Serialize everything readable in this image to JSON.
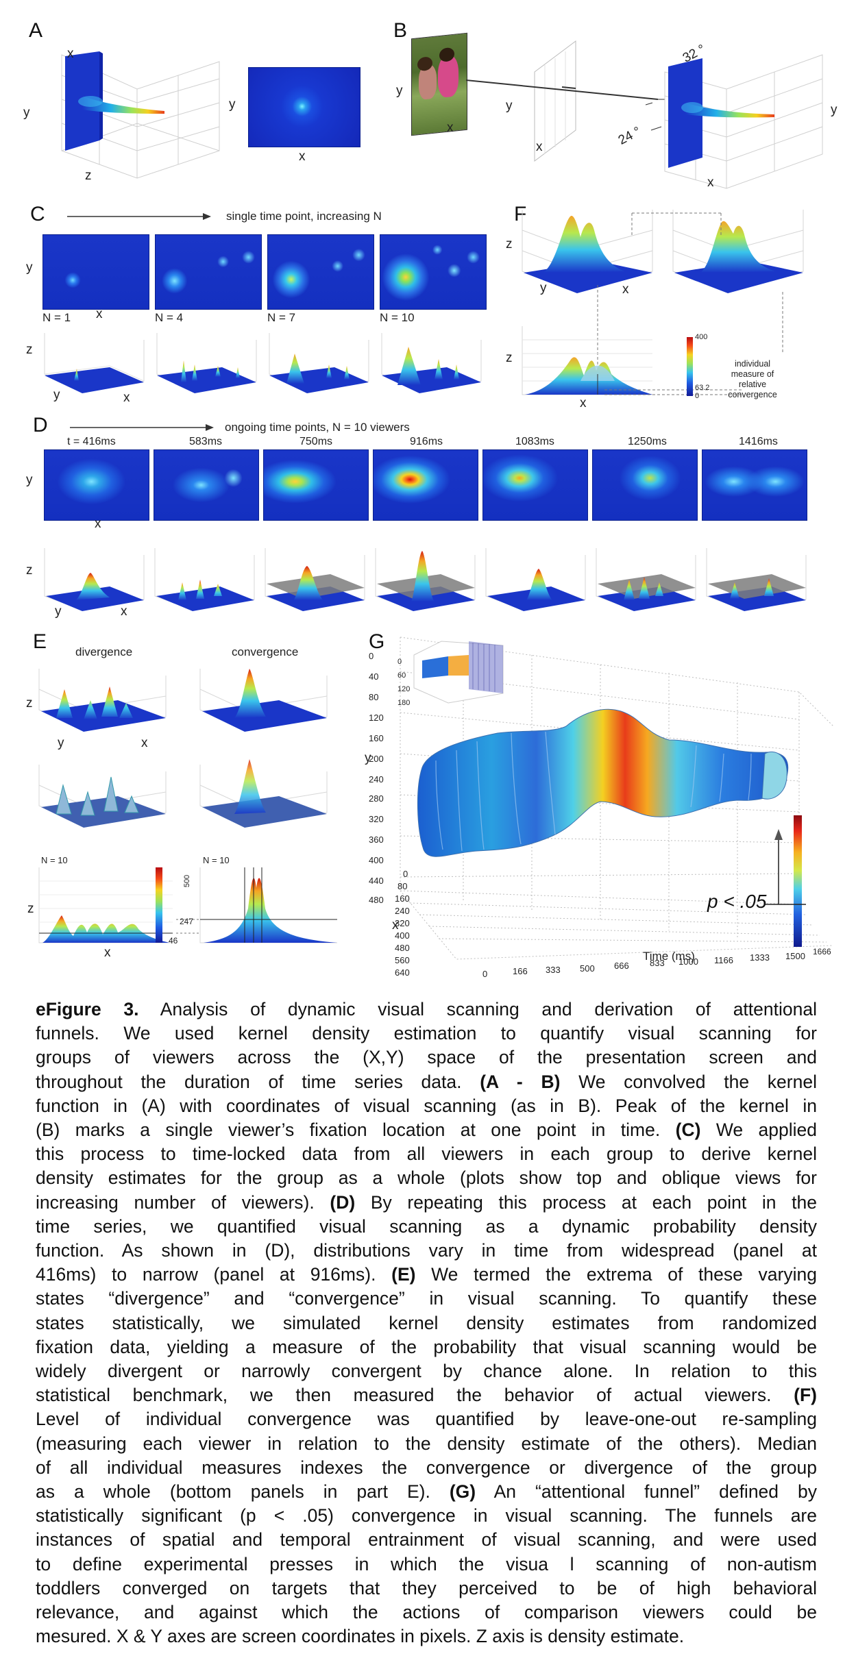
{
  "figure": {
    "panel_labels": [
      "A",
      "B",
      "C",
      "D",
      "E",
      "F",
      "G"
    ],
    "panel_a": {
      "axis_x_3d": "x",
      "axis_y_3d": "y",
      "axis_z_3d": "z",
      "axis_y_2d": "y",
      "axis_x_2d": "x"
    },
    "panel_b": {
      "axis_y_photo": "y",
      "axis_x_photo": "x",
      "axis_y_plane": "y",
      "axis_x_plane": "x",
      "angle_32": "32 °",
      "angle_24": "24 °",
      "axis_y_kernel": "y",
      "axis_x_kernel": "x"
    },
    "panel_c": {
      "title": "single time point,  increasing N",
      "axis_y": "y",
      "axis_x": "x",
      "axis_z": "z",
      "axis_y_low": "y",
      "axis_x_low": "x",
      "n_labels": [
        "N = 1",
        "N = 4",
        "N = 7",
        "N = 10"
      ]
    },
    "panel_d": {
      "title": "ongoing time points, N = 10 viewers",
      "time_labels": [
        "t = 416ms",
        "583ms",
        "750ms",
        "916ms",
        "1083ms",
        "1250ms",
        "1416ms"
      ],
      "axis_y": "y",
      "axis_x": "x",
      "axis_z": "z",
      "axis_y_low": "y",
      "axis_x_low": "x"
    },
    "panel_e": {
      "col_divergence": "divergence",
      "col_convergence": "convergence",
      "axis_z": "z",
      "axis_y": "y",
      "axis_x": "x",
      "n_left": "N = 10",
      "n_right": "N = 10",
      "axis_z_low": "z",
      "axis_x_low": "x",
      "colorbar_top": "500",
      "colorbar_mid": "247",
      "colorbar_low": "46"
    },
    "panel_f": {
      "axis_z": "z",
      "axis_y": "y",
      "axis_x": "x",
      "axis_z_low": "z",
      "axis_x_low": "x",
      "colorbar_top": "400",
      "colorbar_mid": "63.2",
      "colorbar_zero": "0",
      "note": "individual measure of relative convergence"
    },
    "panel_g": {
      "y_label": "y",
      "y_ticks": [
        "0",
        "40",
        "80",
        "120",
        "160",
        "200",
        "240",
        "280",
        "320",
        "360",
        "400",
        "440",
        "480"
      ],
      "inset_y_ticks": [
        "0",
        "60",
        "120",
        "180"
      ],
      "x_label": "x",
      "x_ticks": [
        "0",
        "80",
        "160",
        "240",
        "320",
        "400",
        "480",
        "560",
        "640"
      ],
      "time_label": "Time (ms)",
      "time_ticks": [
        "0",
        "166",
        "333",
        "500",
        "666",
        "833",
        "1000",
        "1166",
        "1333",
        "1500"
      ],
      "colorbar_low": "1666",
      "p_label": "p < .05"
    }
  },
  "caption": {
    "lines": [
      [
        {
          "b": true,
          "t": "eFigure 3."
        },
        {
          "b": false,
          "t": "  Analysis of dynamic visual scanning and derivation of attentional"
        }
      ],
      [
        {
          "b": false,
          "t": "funnels.  We used kernel density estimation to quantify visual scanning for"
        }
      ],
      [
        {
          "b": false,
          "t": "groups of viewers across the (X,Y) space of the presentation screen and"
        }
      ],
      [
        {
          "b": false,
          "t": "throughout the duration of time series data.   "
        },
        {
          "b": true,
          "t": "(A - B)"
        },
        {
          "b": false,
          "t": " We convolved the kernel"
        }
      ],
      [
        {
          "b": false,
          "t": "function in (A) with coordinates of visual scanning (as in B).  Peak of the kernel in"
        }
      ],
      [
        {
          "b": false,
          "t": "(B) marks a single viewer’s fixation location at one point in time.   "
        },
        {
          "b": true,
          "t": "(C)"
        },
        {
          "b": false,
          "t": " We applied"
        }
      ],
      [
        {
          "b": false,
          "t": "this process to time-locked data from all viewers in each group to derive kernel"
        }
      ],
      [
        {
          "b": false,
          "t": "density estimates for the group as a whole (plots show top and oblique views for"
        }
      ],
      [
        {
          "b": false,
          "t": "increasing number of viewers).  "
        },
        {
          "b": true,
          "t": "(D)"
        },
        {
          "b": false,
          "t": " By repeating this process at each point in the"
        }
      ],
      [
        {
          "b": false,
          "t": "time series, we quantified visual scanning as a dynamic probability density"
        }
      ],
      [
        {
          "b": false,
          "t": "function.  As shown in (D), distributions vary in time from widespread (panel at"
        }
      ],
      [
        {
          "b": false,
          "t": "416ms) to narrow (panel at 916ms).  "
        },
        {
          "b": true,
          "t": "(E)"
        },
        {
          "b": false,
          "t": " We termed the extrema of these varying"
        }
      ],
      [
        {
          "b": false,
          "t": "states “divergence” and “convergence” in visual scanning.  To quantify these"
        }
      ],
      [
        {
          "b": false,
          "t": "states statistically, we simulated kernel density estimates from randomized"
        }
      ],
      [
        {
          "b": false,
          "t": "fixation data, yielding a measure of the probability that visual scanning would be"
        }
      ],
      [
        {
          "b": false,
          "t": "widely divergent or narrowly convergent by chance alone.  In relation to this"
        }
      ],
      [
        {
          "b": false,
          "t": "statistical benchmark, we then measured the behavior of actual viewers.   "
        },
        {
          "b": true,
          "t": "(F)"
        }
      ],
      [
        {
          "b": false,
          "t": "Level of individual convergence was quantified  by leave-one-out re-sampling"
        }
      ],
      [
        {
          "b": false,
          "t": "(measuring each viewer in relation to the density estimate of the others).  Median"
        }
      ],
      [
        {
          "b": false,
          "t": "of all individual measures indexes the convergence or divergence of the group"
        }
      ],
      [
        {
          "b": false,
          "t": "as a whole (bottom panels in part E).   "
        },
        {
          "b": true,
          "t": "(G)"
        },
        {
          "b": false,
          "t": " An “attentional funnel” defined by"
        }
      ],
      [
        {
          "b": false,
          "t": "statistically significant (p < .05) convergence in visual scanning. The funnels are"
        }
      ],
      [
        {
          "b": false,
          "t": "instances of spatial and temporal entrainment of visual scanning, and were used"
        }
      ],
      [
        {
          "b": false,
          "t": "to define experimental presses in which the visua l scanning of non-autism"
        }
      ],
      [
        {
          "b": false,
          "t": "toddlers converged on targets that they perceived to be of high behavioral"
        }
      ],
      [
        {
          "b": false,
          "t": "relevance, and against which the actions of comparison viewers could be"
        }
      ],
      [
        {
          "b": false,
          "t": "mesured. X & Y axes are screen coordinates in pixels. Z axis is density estimate."
        }
      ]
    ]
  }
}
